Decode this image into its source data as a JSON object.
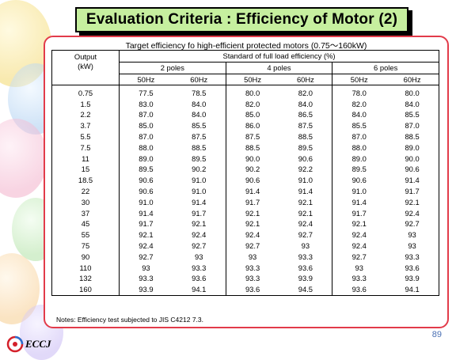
{
  "title": "Evaluation Criteria : Efficiency of Motor (2)",
  "caption": "Target efficiency fo high-efficient protected motors (0.75〜160kW)",
  "header": {
    "output_label": "Output",
    "unit_label": "(kW)",
    "standard_label": "Standard of full load efficiency (%)",
    "poles": [
      "2 poles",
      "4 poles",
      "6 poles"
    ],
    "hz": [
      "50Hz",
      "60Hz",
      "50Hz",
      "60Hz",
      "50Hz",
      "60Hz"
    ]
  },
  "rows": [
    {
      "kw": "0.75",
      "v": [
        "77.5",
        "78.5",
        "80.0",
        "82.0",
        "78.0",
        "80.0"
      ]
    },
    {
      "kw": "1.5",
      "v": [
        "83.0",
        "84.0",
        "82.0",
        "84.0",
        "82.0",
        "84.0"
      ]
    },
    {
      "kw": "2.2",
      "v": [
        "87.0",
        "84.0",
        "85.0",
        "86.5",
        "84.0",
        "85.5"
      ]
    },
    {
      "kw": "3.7",
      "v": [
        "85.0",
        "85.5",
        "86.0",
        "87.5",
        "85.5",
        "87.0"
      ]
    },
    {
      "kw": "5.5",
      "v": [
        "87.0",
        "87.5",
        "87.5",
        "88.5",
        "87.0",
        "88.5"
      ]
    },
    {
      "kw": "7.5",
      "v": [
        "88.0",
        "88.5",
        "88.5",
        "89.5",
        "88.0",
        "89.0"
      ]
    },
    {
      "kw": "11",
      "v": [
        "89.0",
        "89.5",
        "90.0",
        "90.6",
        "89.0",
        "90.0"
      ]
    },
    {
      "kw": "15",
      "v": [
        "89.5",
        "90.2",
        "90.2",
        "92.2",
        "89.5",
        "90.6"
      ]
    },
    {
      "kw": "18.5",
      "v": [
        "90.6",
        "91.0",
        "90.6",
        "91.0",
        "90.6",
        "91.4"
      ]
    },
    {
      "kw": "22",
      "v": [
        "90.6",
        "91.0",
        "91.4",
        "91.4",
        "91.0",
        "91.7"
      ]
    },
    {
      "kw": "30",
      "v": [
        "91.0",
        "91.4",
        "91.7",
        "92.1",
        "91.4",
        "92.1"
      ]
    },
    {
      "kw": "37",
      "v": [
        "91.4",
        "91.7",
        "92.1",
        "92.1",
        "91.7",
        "92.4"
      ]
    },
    {
      "kw": "45",
      "v": [
        "91.7",
        "92.1",
        "92.1",
        "92.4",
        "92.1",
        "92.7"
      ]
    },
    {
      "kw": "55",
      "v": [
        "92.1",
        "92.4",
        "92.4",
        "92.7",
        "92.4",
        "93"
      ]
    },
    {
      "kw": "75",
      "v": [
        "92.4",
        "92.7",
        "92.7",
        "93",
        "92.4",
        "93"
      ]
    },
    {
      "kw": "90",
      "v": [
        "92.7",
        "93",
        "93",
        "93.3",
        "92.7",
        "93.3"
      ]
    },
    {
      "kw": "110",
      "v": [
        "93",
        "93.3",
        "93.3",
        "93.6",
        "93",
        "93.6"
      ]
    },
    {
      "kw": "132",
      "v": [
        "93.3",
        "93.6",
        "93.3",
        "93.9",
        "93.3",
        "93.9"
      ]
    },
    {
      "kw": "160",
      "v": [
        "93.9",
        "94.1",
        "93.6",
        "94.5",
        "93.6",
        "94.1"
      ]
    }
  ],
  "notes": "Notes: Efficiency test subjected to JIS C4212 7.3.",
  "page_number": "89",
  "logo_text": "ECCJ",
  "colors": {
    "title_bg": "#c6ef9f",
    "frame_border": "#e23b4a",
    "page_number": "#4a6fb3"
  }
}
